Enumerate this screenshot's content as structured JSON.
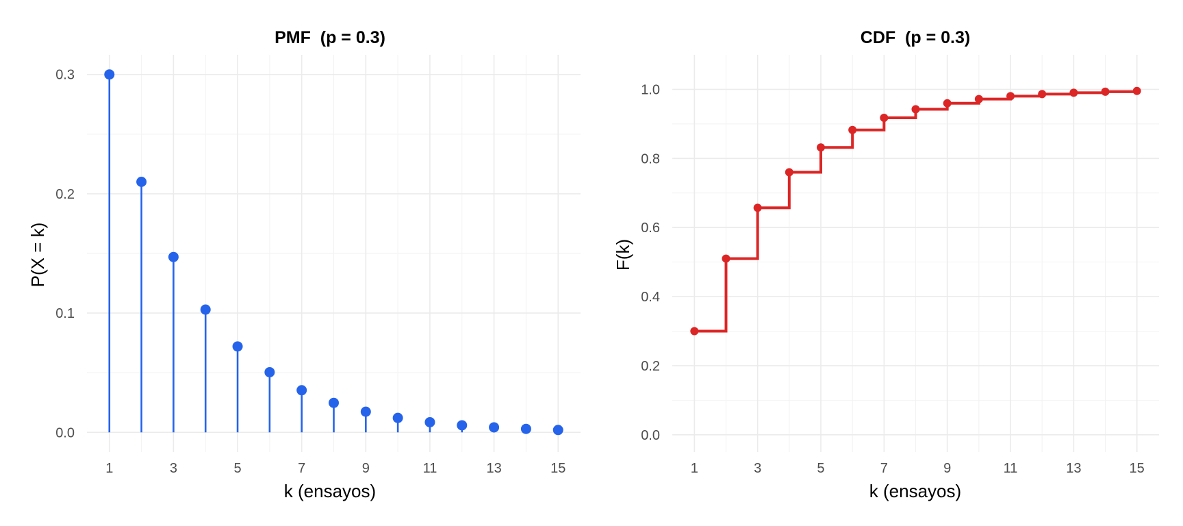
{
  "chart_data": [
    {
      "type": "lollipop",
      "title": "PMF  (p = 0.3)",
      "xlabel": "k (ensayos)",
      "ylabel": "P(X = k)",
      "x": [
        1,
        2,
        3,
        4,
        5,
        6,
        7,
        8,
        9,
        10,
        11,
        12,
        13,
        14,
        15
      ],
      "values": [
        0.3,
        0.21,
        0.147,
        0.1029,
        0.072,
        0.0504,
        0.0353,
        0.0247,
        0.0173,
        0.0121,
        0.0085,
        0.0059,
        0.0042,
        0.0029,
        0.002
      ],
      "xticks": [
        1,
        3,
        5,
        7,
        9,
        11,
        13,
        15
      ],
      "xtick_labels": [
        "1",
        "3",
        "5",
        "7",
        "9",
        "11",
        "13",
        "15"
      ],
      "yticks": [
        0.0,
        0.1,
        0.2,
        0.3
      ],
      "ytick_labels": [
        "0.0",
        "0.1",
        "0.2",
        "0.3"
      ],
      "xlim": [
        0.3,
        15.7
      ],
      "ylim": [
        -0.0165,
        0.3165
      ],
      "grid": true,
      "color": "#2563eb"
    },
    {
      "type": "step",
      "title": "CDF  (p = 0.3)",
      "xlabel": "k (ensayos)",
      "ylabel": "F(k)",
      "x": [
        1,
        2,
        3,
        4,
        5,
        6,
        7,
        8,
        9,
        10,
        11,
        12,
        13,
        14,
        15
      ],
      "values": [
        0.3,
        0.51,
        0.657,
        0.7599,
        0.8319,
        0.8824,
        0.9176,
        0.9424,
        0.9596,
        0.9718,
        0.9802,
        0.9862,
        0.9903,
        0.9932,
        0.9953
      ],
      "xticks": [
        1,
        3,
        5,
        7,
        9,
        11,
        13,
        15
      ],
      "xtick_labels": [
        "1",
        "3",
        "5",
        "7",
        "9",
        "11",
        "13",
        "15"
      ],
      "yticks": [
        0.0,
        0.2,
        0.4,
        0.6,
        0.8,
        1.0
      ],
      "ytick_labels": [
        "0.0",
        "0.2",
        "0.4",
        "0.6",
        "0.8",
        "1.0"
      ],
      "xlim": [
        0.3,
        15.7
      ],
      "ylim": [
        -0.05,
        1.1
      ],
      "grid": true,
      "color": "#dc2626"
    }
  ]
}
